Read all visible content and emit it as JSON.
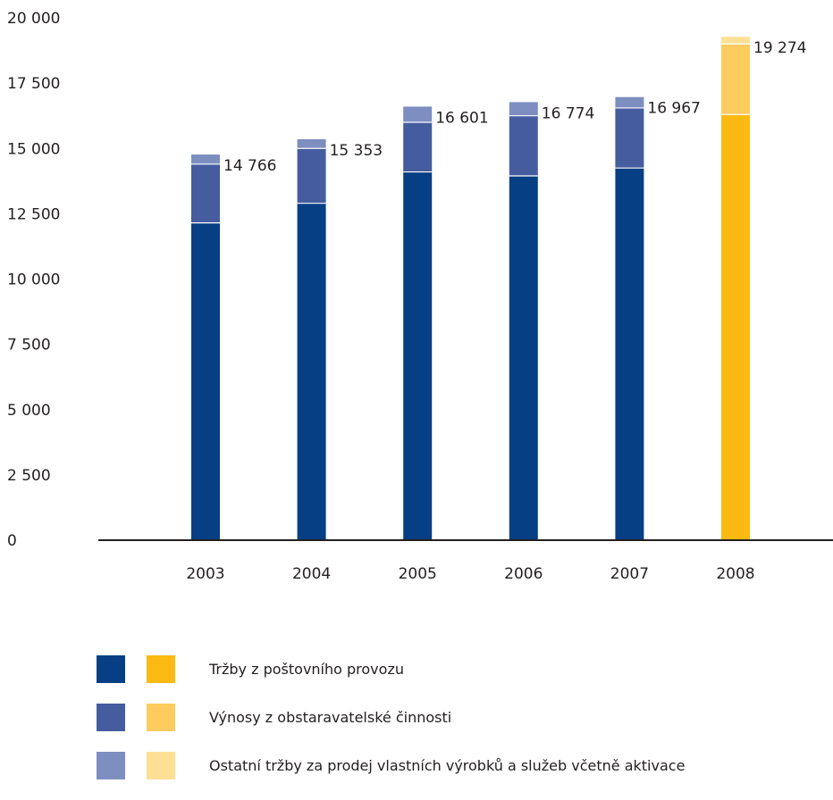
{
  "chart_data": {
    "type": "bar",
    "stacked": true,
    "categories": [
      "2003",
      "2004",
      "2005",
      "2006",
      "2007",
      "2008"
    ],
    "series": [
      {
        "name": "Tržby z poštovního provozu",
        "values": [
          12150,
          12900,
          14100,
          13950,
          14250,
          16300
        ]
      },
      {
        "name": "Výnosy z obstaravatelské činnosti",
        "values": [
          2250,
          2100,
          1900,
          2300,
          2300,
          2700
        ]
      },
      {
        "name": "Ostatní tržby za prodej vlastních výrobků a služeb včetně aktivace",
        "values": [
          366,
          353,
          601,
          524,
          417,
          274
        ]
      }
    ],
    "totals": [
      "14 766",
      "15 353",
      "16 601",
      "16 774",
      "16 967",
      "19 274"
    ],
    "ylim": [
      0,
      20000
    ],
    "yticks": [
      {
        "value": 0,
        "label": "0"
      },
      {
        "value": 2500,
        "label": "2 500"
      },
      {
        "value": 5000,
        "label": "5 000"
      },
      {
        "value": 7500,
        "label": "7 500"
      },
      {
        "value": 10000,
        "label": "10 000"
      },
      {
        "value": 12500,
        "label": "12 500"
      },
      {
        "value": 15000,
        "label": "15 000"
      },
      {
        "value": 17500,
        "label": "17 500"
      },
      {
        "value": 20000,
        "label": "20 000"
      }
    ],
    "colors": {
      "default": [
        "#063f83",
        "#455c9f",
        "#7d8ec0"
      ],
      "highlight": [
        "#fbba12",
        "#fdcc5f",
        "#fee095"
      ]
    },
    "highlight_category": "2008",
    "grid": false,
    "legend_position": "bottom-left"
  }
}
